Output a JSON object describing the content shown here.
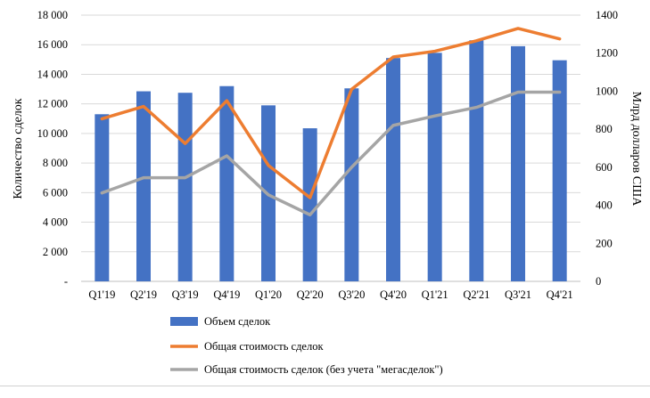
{
  "chart_data": {
    "type": "bar",
    "categories": [
      "Q1'19",
      "Q2'19",
      "Q3'19",
      "Q4'19",
      "Q1'20",
      "Q2'20",
      "Q3'20",
      "Q4'20",
      "Q1'21",
      "Q2'21",
      "Q3'21",
      "Q4'21"
    ],
    "series": [
      {
        "name": "Объем сделок",
        "type": "bar",
        "axis": "left",
        "color": "#4472C4",
        "values": [
          11300,
          12850,
          12750,
          13200,
          11900,
          10350,
          13050,
          15100,
          15450,
          16300,
          15900,
          14950
        ]
      },
      {
        "name": "Общая стоимость сделок",
        "type": "line",
        "axis": "right",
        "color": "#ED7D31",
        "values": [
          855,
          920,
          725,
          950,
          610,
          440,
          1010,
          1180,
          1210,
          1265,
          1330,
          1275
        ]
      },
      {
        "name": "Общая стоимость сделок (без учета \"мегасделок\")",
        "type": "line",
        "axis": "right",
        "color": "#A5A5A5",
        "values": [
          465,
          545,
          545,
          660,
          455,
          350,
          600,
          820,
          870,
          915,
          995,
          995
        ]
      }
    ],
    "ylabel": "Количество сделок",
    "y2label": "Млрд долларов США",
    "ylim": [
      0,
      18000
    ],
    "y2lim": [
      0,
      1400
    ],
    "yticks": [
      "-",
      "2 000",
      "4 000",
      "6 000",
      "8 000",
      "10 000",
      "12 000",
      "14 000",
      "16 000",
      "18 000"
    ],
    "y2ticks": [
      "0",
      "200",
      "400",
      "600",
      "800",
      "1000",
      "1200",
      "1400"
    ],
    "grid": true,
    "legend_position": "bottom"
  }
}
